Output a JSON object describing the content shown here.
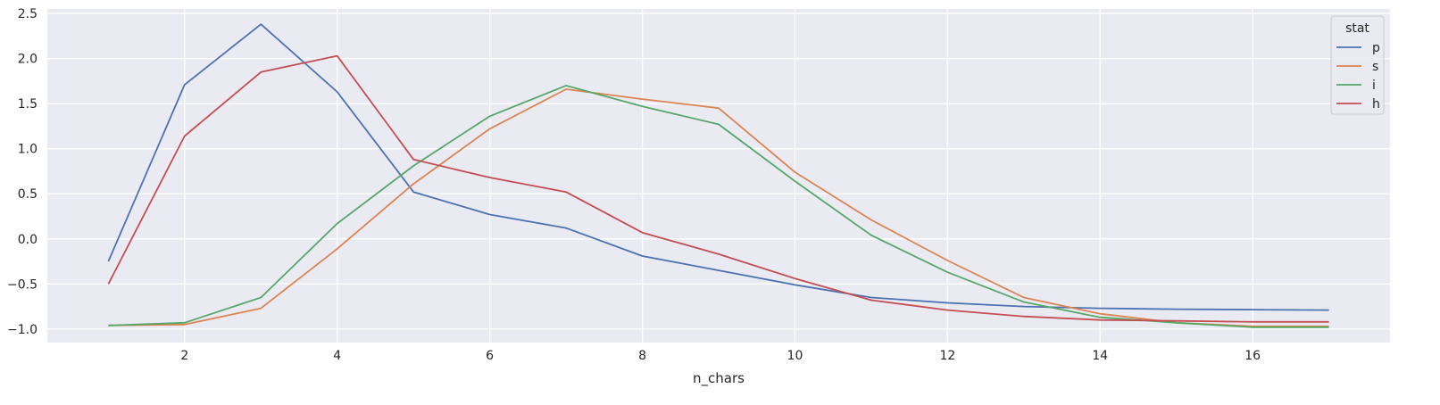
{
  "chart_data": {
    "type": "line",
    "xlabel": "n_chars",
    "ylabel": "",
    "xlim": [
      0.2,
      17.8
    ],
    "ylim": [
      -1.15,
      2.55
    ],
    "xticks": [
      2,
      4,
      6,
      8,
      10,
      12,
      14,
      16
    ],
    "yticks": [
      -1.0,
      -0.5,
      0.0,
      0.5,
      1.0,
      1.5,
      2.0,
      2.5
    ],
    "xtick_labels": [
      "2",
      "4",
      "6",
      "8",
      "10",
      "12",
      "14",
      "16"
    ],
    "ytick_labels": [
      "−1.0",
      "−0.5",
      "0.0",
      "0.5",
      "1.0",
      "1.5",
      "2.0",
      "2.5"
    ],
    "grid": true,
    "background": "#eaeaf2",
    "legend": {
      "title": "stat",
      "placement": "top-right"
    },
    "x": [
      1,
      2,
      3,
      4,
      5,
      6,
      7,
      8,
      9,
      10,
      11,
      12,
      13,
      14,
      15,
      16,
      17
    ],
    "series": [
      {
        "name": "p",
        "color": "#4c72b0",
        "values": [
          -0.25,
          1.71,
          2.38,
          1.63,
          0.52,
          0.27,
          0.12,
          -0.19,
          -0.35,
          -0.51,
          -0.65,
          -0.71,
          -0.75,
          -0.77,
          -0.78,
          -0.785,
          -0.79
        ]
      },
      {
        "name": "s",
        "color": "#dd8452",
        "values": [
          -0.96,
          -0.95,
          -0.77,
          -0.11,
          0.61,
          1.22,
          1.66,
          1.55,
          1.45,
          0.74,
          0.21,
          -0.24,
          -0.65,
          -0.83,
          -0.93,
          -0.97,
          -0.97
        ]
      },
      {
        "name": "i",
        "color": "#55a868",
        "values": [
          -0.96,
          -0.93,
          -0.65,
          0.17,
          0.81,
          1.36,
          1.7,
          1.47,
          1.27,
          0.64,
          0.04,
          -0.37,
          -0.7,
          -0.87,
          -0.93,
          -0.98,
          -0.98
        ]
      },
      {
        "name": "h",
        "color": "#c44e52",
        "values": [
          -0.5,
          1.14,
          1.85,
          2.03,
          0.88,
          0.68,
          0.52,
          0.07,
          -0.17,
          -0.44,
          -0.68,
          -0.79,
          -0.86,
          -0.9,
          -0.91,
          -0.92,
          -0.92
        ]
      }
    ]
  }
}
